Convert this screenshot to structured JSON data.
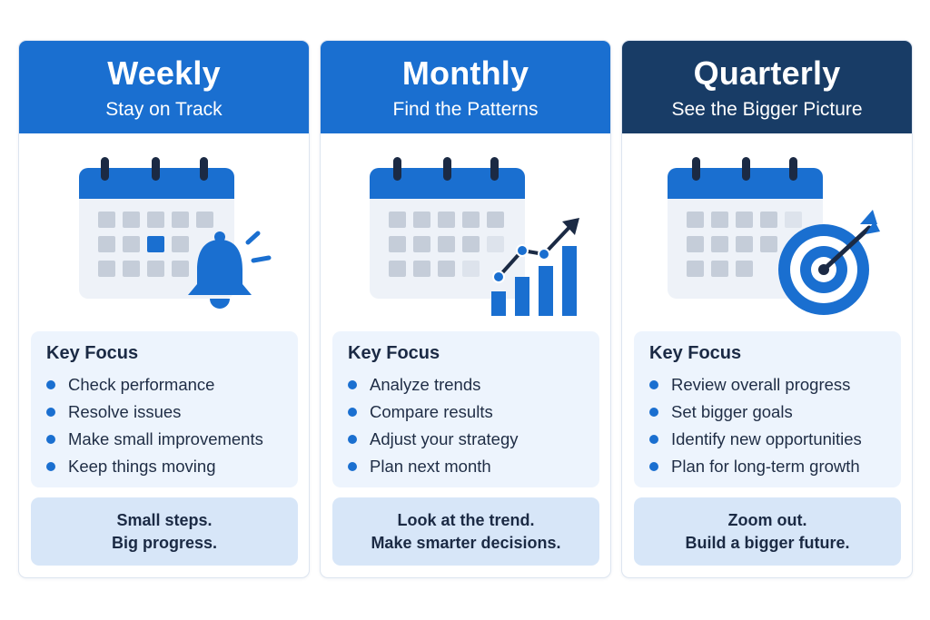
{
  "cards": [
    {
      "title": "Weekly",
      "subtitle": "Stay on Track",
      "icon": "calendar-bell-icon",
      "focus_heading": "Key Focus",
      "focus_items": [
        "Check performance",
        "Resolve issues",
        "Make small improvements",
        "Keep things moving"
      ],
      "tagline_1": "Small steps.",
      "tagline_2": "Big progress."
    },
    {
      "title": "Monthly",
      "subtitle": "Find the Patterns",
      "icon": "calendar-chart-icon",
      "focus_heading": "Key Focus",
      "focus_items": [
        "Analyze trends",
        "Compare results",
        "Adjust your strategy",
        "Plan next month"
      ],
      "tagline_1": "Look at the trend.",
      "tagline_2": "Make smarter decisions."
    },
    {
      "title": "Quarterly",
      "subtitle": "See the Bigger Picture",
      "icon": "calendar-target-icon",
      "focus_heading": "Key Focus",
      "focus_items": [
        "Review overall progress",
        "Set bigger goals",
        "Identify new opportunities",
        "Plan for long-term growth"
      ],
      "tagline_1": "Zoom out.",
      "tagline_2": "Build a bigger future."
    }
  ],
  "colors": {
    "primary": "#1a6fd0",
    "navy": "#183c66",
    "light_panel": "#edf4fd",
    "tag_panel": "#d7e6f8"
  }
}
